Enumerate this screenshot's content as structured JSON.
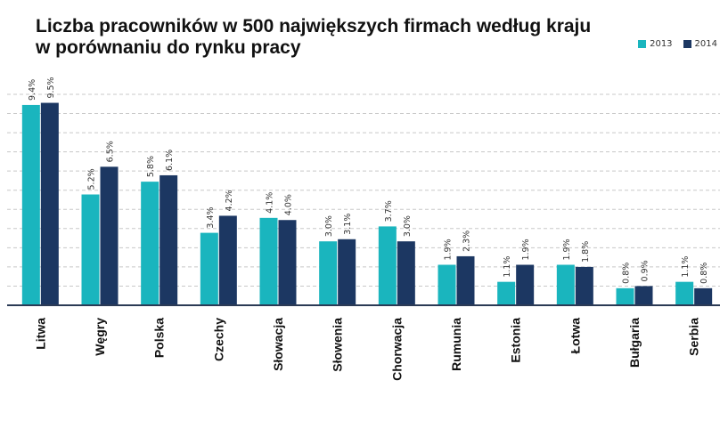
{
  "chart_data": {
    "type": "bar",
    "title": "Liczba pracowników w 500 największych firmach według kraju",
    "subtitle": "w porównaniu do rynku pracy",
    "xlabel": "",
    "ylabel": "",
    "ylim": [
      0,
      10.4
    ],
    "grid": true,
    "legend_position": "top-right",
    "categories": [
      "Litwa",
      "Węgry",
      "Polska",
      "Czechy",
      "Słowacja",
      "Słowenia",
      "Chorwacja",
      "Rumunia",
      "Estonia",
      "Łotwa",
      "Bułgaria",
      "Serbia"
    ],
    "series": [
      {
        "name": "2013",
        "color": "#1ab5be",
        "values": [
          9.4,
          5.2,
          5.8,
          3.4,
          4.1,
          3.0,
          3.7,
          1.9,
          1.1,
          1.9,
          0.8,
          1.1
        ],
        "labels": [
          "9.4%",
          "5.2%",
          "5.8%",
          "3.4%",
          "4.1%",
          "3.0%",
          "3.7%",
          "1.9%",
          "1.1%",
          "1.9%",
          "0.8%",
          "1.1%"
        ]
      },
      {
        "name": "2014",
        "color": "#1c3762",
        "values": [
          9.5,
          6.5,
          6.1,
          4.2,
          4.0,
          3.1,
          3.0,
          2.3,
          1.9,
          1.8,
          0.9,
          0.8
        ],
        "labels": [
          "9.5%",
          "6.5%",
          "6.1%",
          "4.2%",
          "4.0%",
          "3.1%",
          "3.0%",
          "2.3%",
          "1.9%",
          "1.8%",
          "0.9%",
          "0.8%"
        ]
      }
    ]
  }
}
